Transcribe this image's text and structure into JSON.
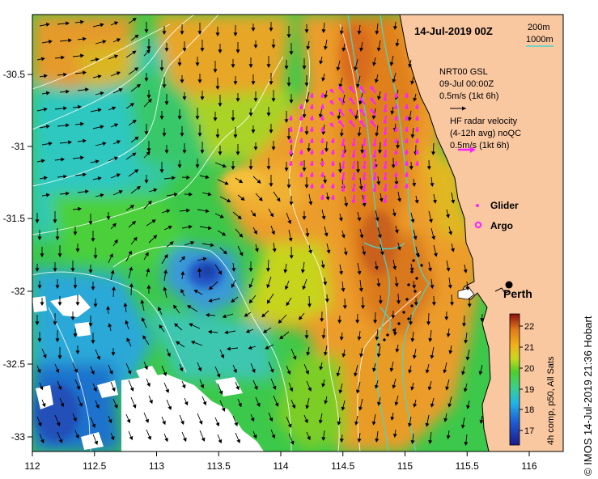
{
  "title": "14-Jul-2019 00Z",
  "depth_legend": {
    "contour_1": "200m",
    "contour_2": "1000m"
  },
  "model_vectors": {
    "label_1": "NRT00 GSL",
    "label_2": "09-Jul 00:00Z",
    "scale_label": "0.5m/s (1kt 6h)"
  },
  "radar_vectors": {
    "label_1": "HF radar velocity",
    "label_2": "(4-12h avg) noQC",
    "scale_label": "0.5m/s (1kt 6h)"
  },
  "legend": {
    "glider": "Glider",
    "argo": "Argo"
  },
  "places": {
    "city": "Perth"
  },
  "colorbar": {
    "title": "4h comp, p50, All Sats",
    "ticks": [
      "22",
      "21",
      "20",
      "19",
      "18",
      "17"
    ]
  },
  "credit": "© IMOS 14-Jul-2019 21:36 Hobart",
  "axes": {
    "x_ticks": [
      "112",
      "112.5",
      "113",
      "113.5",
      "114",
      "114.5",
      "115",
      "115.5",
      "116"
    ],
    "y_ticks": [
      "-30.5",
      "-31",
      "-31.5",
      "-32",
      "-32.5",
      "-33"
    ]
  },
  "colors": {
    "land": "#f9c7a0",
    "cloud": "#ffffff",
    "contour": "#4fd3c4",
    "isoline": "#ffffff",
    "vector": "#000000",
    "marker": "#ff22ff"
  }
}
